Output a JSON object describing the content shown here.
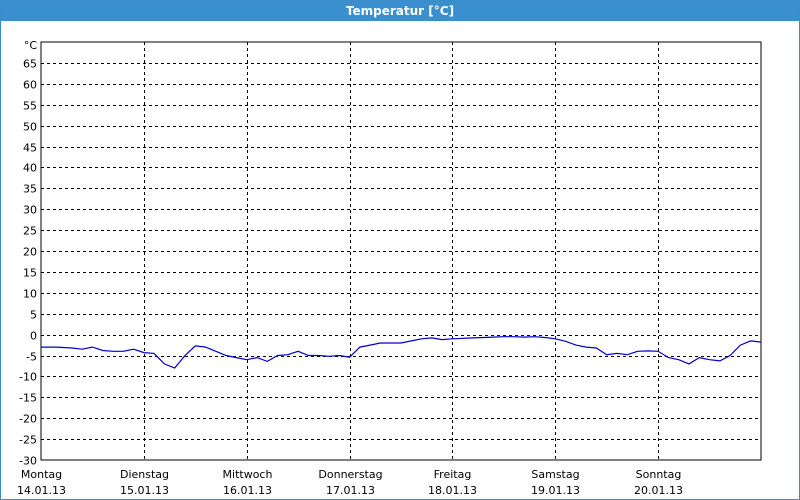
{
  "window": {
    "title": "Temperatur [°C]"
  },
  "colors": {
    "title_bar": "#3a8fce",
    "line": "#0000cc",
    "grid": "#000000"
  },
  "chart_data": {
    "type": "line",
    "title": "Temperatur [°C]",
    "ylabel": "°C",
    "ylim": [
      -30,
      65
    ],
    "yticks": [
      65,
      60,
      55,
      50,
      45,
      40,
      35,
      30,
      25,
      20,
      15,
      10,
      5,
      0,
      -5,
      -10,
      -15,
      -20,
      -25,
      -30
    ],
    "xlim": [
      0,
      7
    ],
    "grid": true,
    "categories": [
      {
        "day": "Montag",
        "date": "14.01.13"
      },
      {
        "day": "Dienstag",
        "date": "15.01.13"
      },
      {
        "day": "Mittwoch",
        "date": "16.01.13"
      },
      {
        "day": "Donnerstag",
        "date": "17.01.13"
      },
      {
        "day": "Freitag",
        "date": "18.01.13"
      },
      {
        "day": "Samstag",
        "date": "19.01.13"
      },
      {
        "day": "Sonntag",
        "date": "20.01.13"
      }
    ],
    "series": [
      {
        "x": [
          0,
          0.15,
          0.3,
          0.4,
          0.5,
          0.6,
          0.7,
          0.8,
          0.9,
          1.0,
          1.1,
          1.2,
          1.3,
          1.4,
          1.5,
          1.6,
          1.7,
          1.8,
          1.9,
          2.0,
          2.1,
          2.2,
          2.3,
          2.4,
          2.5,
          2.6,
          2.7,
          2.8,
          2.9,
          3.0,
          3.1,
          3.2,
          3.3,
          3.4,
          3.5,
          3.6,
          3.7,
          3.8,
          3.9,
          4.0,
          4.2,
          4.4,
          4.5,
          4.6,
          4.7,
          4.8,
          4.9,
          5.0,
          5.1,
          5.2,
          5.3,
          5.4,
          5.5,
          5.6,
          5.7,
          5.8,
          5.9,
          6.0,
          6.1,
          6.2,
          6.3,
          6.4,
          6.5,
          6.6,
          6.7,
          6.8,
          6.9,
          7.0
        ],
        "values": [
          -3,
          -3,
          -3.2,
          -3.5,
          -3,
          -3.8,
          -4,
          -4,
          -3.5,
          -4.3,
          -4.5,
          -7,
          -8,
          -5,
          -2.7,
          -3,
          -4,
          -5,
          -5.5,
          -6,
          -5.5,
          -6.4,
          -5,
          -4.8,
          -4,
          -5,
          -5,
          -5.2,
          -5,
          -5.4,
          -3,
          -2.5,
          -2,
          -2,
          -2,
          -1.5,
          -1,
          -0.8,
          -1.2,
          -1,
          -0.8,
          -0.6,
          -0.5,
          -0.5,
          -0.6,
          -0.5,
          -0.7,
          -1,
          -1.6,
          -2.5,
          -3,
          -3.2,
          -4.8,
          -4.5,
          -4.8,
          -4,
          -3.9,
          -4,
          -5.5,
          -6,
          -7,
          -5.5,
          -6,
          -6.3,
          -5,
          -2.5,
          -1.5,
          -1.8
        ]
      }
    ]
  }
}
